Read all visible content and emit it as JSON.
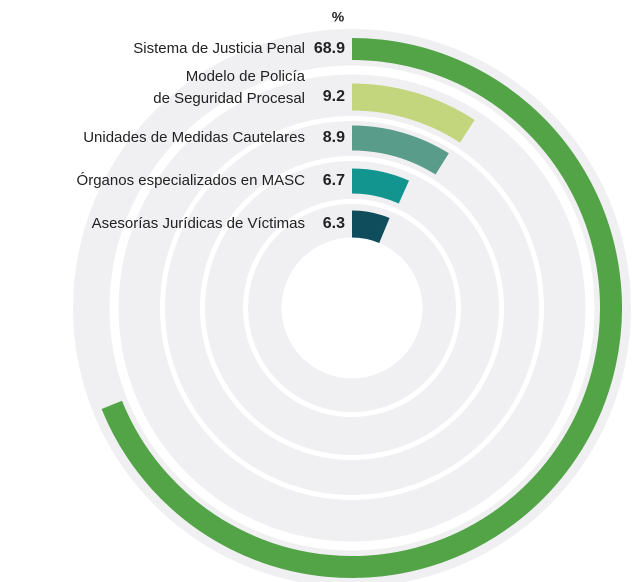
{
  "chart_data": {
    "type": "radial_bar",
    "unit_label": "%",
    "categories": [
      [
        "Sistema de Justicia Penal"
      ],
      [
        "Modelo de Policía",
        "de Seguridad Procesal"
      ],
      [
        "Unidades de Medidas Cautelares"
      ],
      [
        "Órganos especializados en MASC"
      ],
      [
        "Asesorías Jurídicas de Víctimas"
      ]
    ],
    "values": [
      68.9,
      9.2,
      8.9,
      6.7,
      6.3
    ],
    "colors": [
      "#52a447",
      "#c3d57d",
      "#5a9c8a",
      "#13958f",
      "#0f4c5c"
    ],
    "track_color": "#f0f0f2",
    "ylim": [
      0,
      100
    ]
  }
}
